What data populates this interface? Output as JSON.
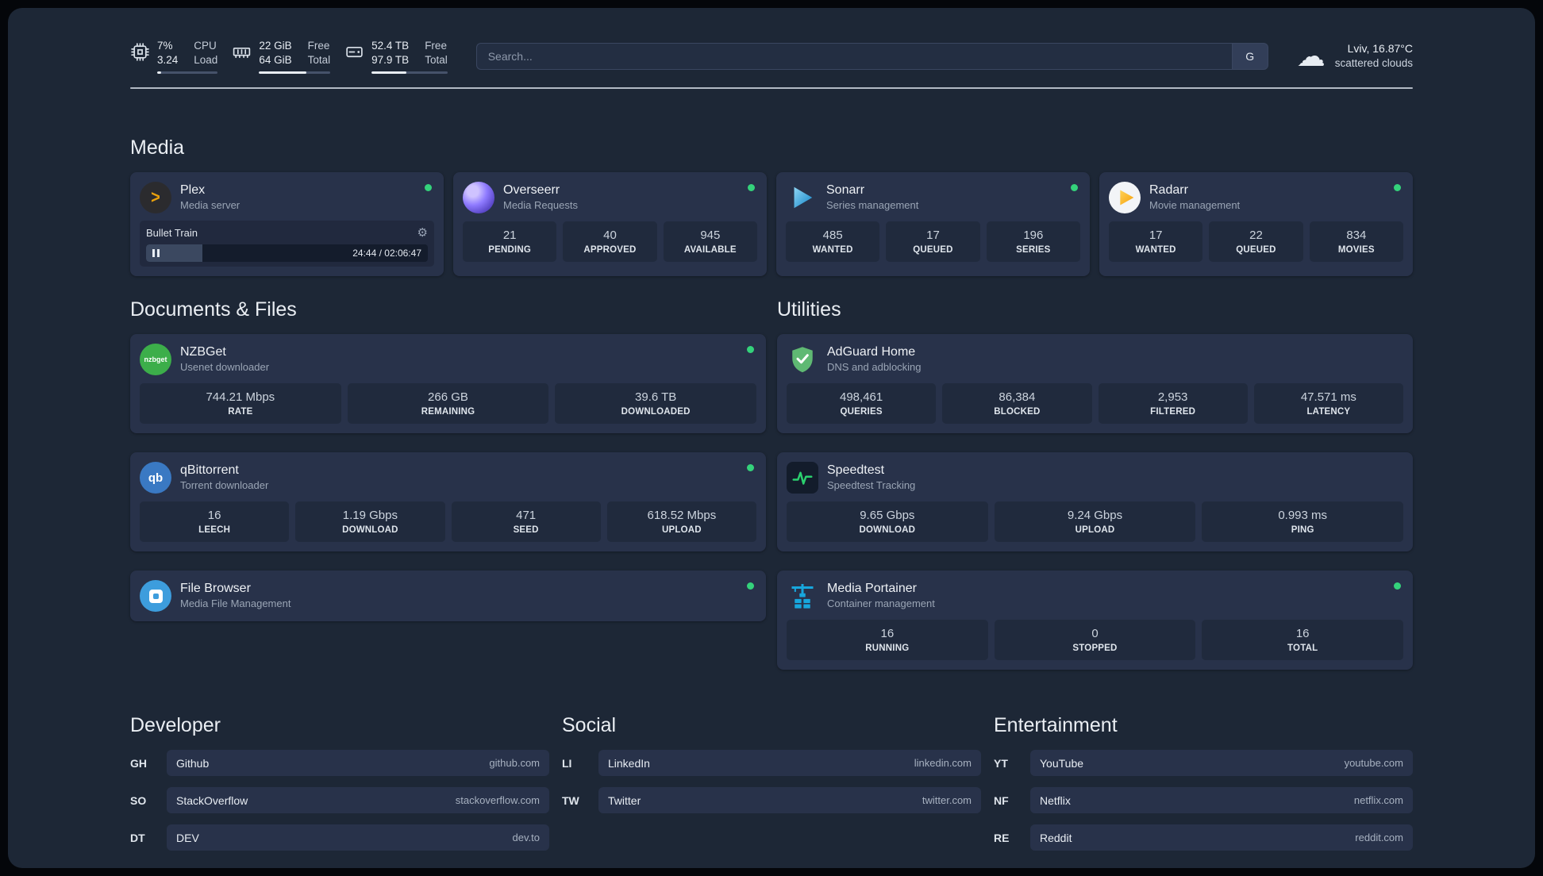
{
  "colors": {
    "status_online": "#34d27b",
    "plex_gold": "#e8a00d",
    "sonarr_blue": "#1284c7",
    "radarr_amber": "#f59f0a",
    "nzbget_green": "#3cae4a",
    "qbittorrent_blue": "#3a79c3",
    "adguard_green": "#5fb973",
    "speedtest_green": "#2bd06e",
    "filebrowser_blue": "#3d9ddd",
    "portainer_blue": "#17a7dd"
  },
  "icons": {
    "cloud": "☁",
    "gear": "⚙",
    "plex_chevron": ">"
  },
  "topbar": {
    "cpu": {
      "value_top": "7%",
      "value_bottom": "3.24",
      "label_top": "CPU",
      "label_bottom": "Load",
      "used_percent": 7
    },
    "memory": {
      "value_top": "22 GiB",
      "value_bottom": "64 GiB",
      "label_top": "Free",
      "label_bottom": "Total",
      "used_percent": 66
    },
    "disk": {
      "value_top": "52.4 TB",
      "value_bottom": "97.9 TB",
      "label_top": "Free",
      "label_bottom": "Total",
      "used_percent": 46
    },
    "search": {
      "placeholder": "Search...",
      "button": "G"
    },
    "weather": {
      "location": "Lviv, 16.87°C",
      "condition": "scattered clouds"
    }
  },
  "media": {
    "title": "Media",
    "plex": {
      "name": "Plex",
      "desc": "Media server",
      "now_playing": "Bullet Train",
      "time": "24:44 / 02:06:47",
      "progress_percent": 20
    },
    "overseerr": {
      "name": "Overseerr",
      "desc": "Media Requests",
      "stats": [
        {
          "value": "21",
          "label": "PENDING"
        },
        {
          "value": "40",
          "label": "APPROVED"
        },
        {
          "value": "945",
          "label": "AVAILABLE"
        }
      ]
    },
    "sonarr": {
      "name": "Sonarr",
      "desc": "Series management",
      "stats": [
        {
          "value": "485",
          "label": "WANTED"
        },
        {
          "value": "17",
          "label": "QUEUED"
        },
        {
          "value": "196",
          "label": "SERIES"
        }
      ]
    },
    "radarr": {
      "name": "Radarr",
      "desc": "Movie management",
      "stats": [
        {
          "value": "17",
          "label": "WANTED"
        },
        {
          "value": "22",
          "label": "QUEUED"
        },
        {
          "value": "834",
          "label": "MOVIES"
        }
      ]
    }
  },
  "documents": {
    "title": "Documents & Files",
    "nzbget": {
      "name": "NZBGet",
      "desc": "Usenet downloader",
      "icon_text": "nzbget",
      "stats": [
        {
          "value": "744.21 Mbps",
          "label": "RATE"
        },
        {
          "value": "266 GB",
          "label": "REMAINING"
        },
        {
          "value": "39.6 TB",
          "label": "DOWNLOADED"
        }
      ]
    },
    "qbittorrent": {
      "name": "qBittorrent",
      "desc": "Torrent downloader",
      "icon_text": "qb",
      "stats": [
        {
          "value": "16",
          "label": "LEECH"
        },
        {
          "value": "1.19 Gbps",
          "label": "DOWNLOAD"
        },
        {
          "value": "471",
          "label": "SEED"
        },
        {
          "value": "618.52 Mbps",
          "label": "UPLOAD"
        }
      ]
    },
    "filebrowser": {
      "name": "File Browser",
      "desc": "Media File Management"
    }
  },
  "utilities": {
    "title": "Utilities",
    "adguard": {
      "name": "AdGuard Home",
      "desc": "DNS and adblocking",
      "stats": [
        {
          "value": "498,461",
          "label": "QUERIES"
        },
        {
          "value": "86,384",
          "label": "BLOCKED"
        },
        {
          "value": "2,953",
          "label": "FILTERED"
        },
        {
          "value": "47.571 ms",
          "label": "LATENCY"
        }
      ]
    },
    "speedtest": {
      "name": "Speedtest",
      "desc": "Speedtest Tracking",
      "stats": [
        {
          "value": "9.65 Gbps",
          "label": "DOWNLOAD"
        },
        {
          "value": "9.24 Gbps",
          "label": "UPLOAD"
        },
        {
          "value": "0.993 ms",
          "label": "PING"
        }
      ]
    },
    "portainer": {
      "name": "Media Portainer",
      "desc": "Container management",
      "stats": [
        {
          "value": "16",
          "label": "RUNNING"
        },
        {
          "value": "0",
          "label": "STOPPED"
        },
        {
          "value": "16",
          "label": "TOTAL"
        }
      ]
    }
  },
  "bookmarks": {
    "developer": {
      "title": "Developer",
      "items": [
        {
          "abbr": "GH",
          "name": "Github",
          "domain": "github.com"
        },
        {
          "abbr": "SO",
          "name": "StackOverflow",
          "domain": "stackoverflow.com"
        },
        {
          "abbr": "DT",
          "name": "DEV",
          "domain": "dev.to"
        }
      ]
    },
    "social": {
      "title": "Social",
      "items": [
        {
          "abbr": "LI",
          "name": "LinkedIn",
          "domain": "linkedin.com"
        },
        {
          "abbr": "TW",
          "name": "Twitter",
          "domain": "twitter.com"
        }
      ]
    },
    "entertainment": {
      "title": "Entertainment",
      "items": [
        {
          "abbr": "YT",
          "name": "YouTube",
          "domain": "youtube.com"
        },
        {
          "abbr": "NF",
          "name": "Netflix",
          "domain": "netflix.com"
        },
        {
          "abbr": "RE",
          "name": "Reddit",
          "domain": "reddit.com"
        }
      ]
    }
  }
}
